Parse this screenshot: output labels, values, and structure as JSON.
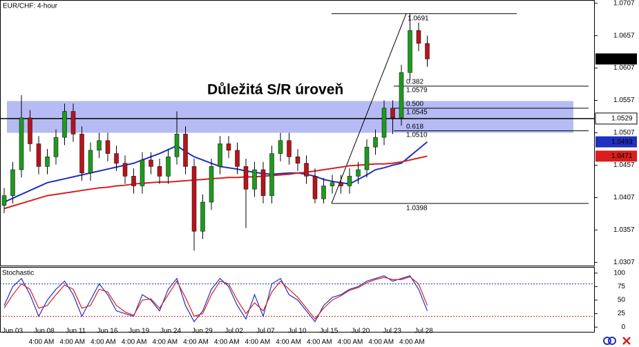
{
  "chart_data": [
    {
      "type": "candlestick",
      "title": "EUR/CHF: 4-hour",
      "annotation": "Důležitá S/R úroveň",
      "ylim": [
        1.0302,
        1.0712
      ],
      "yticks": [
        1.0707,
        1.0657,
        1.0607,
        1.0557,
        1.0507,
        1.0457,
        1.0407,
        1.0357,
        1.0307
      ],
      "up_color": "#1f9a1f",
      "down_color": "#b8141b",
      "open": [
        1.0395,
        1.041,
        1.045,
        1.053,
        1.049,
        1.0455,
        1.047,
        1.05,
        1.054,
        1.0505,
        1.0445,
        1.048,
        1.0495,
        1.0475,
        1.046,
        1.044,
        1.0425,
        1.0465,
        1.0455,
        1.044,
        1.047,
        1.0505,
        1.0455,
        1.0355,
        1.04,
        1.0455,
        1.049,
        1.048,
        1.0455,
        1.042,
        1.045,
        1.041,
        1.0475,
        1.0495,
        1.047,
        1.046,
        1.044,
        1.0405,
        1.0425,
        1.043,
        1.0425,
        1.044,
        1.045,
        1.0485,
        1.05,
        1.0545,
        1.053,
        1.06,
        1.0665,
        1.0645
      ],
      "high": [
        1.0422,
        1.0462,
        1.0565,
        1.0542,
        1.0502,
        1.0482,
        1.0512,
        1.0552,
        1.0552,
        1.0517,
        1.0492,
        1.0507,
        1.0507,
        1.0487,
        1.0472,
        1.0452,
        1.0477,
        1.0477,
        1.0467,
        1.0482,
        1.054,
        1.0517,
        1.0467,
        1.0412,
        1.0467,
        1.0502,
        1.0502,
        1.0492,
        1.0467,
        1.0462,
        1.0462,
        1.0487,
        1.0507,
        1.0507,
        1.0482,
        1.0472,
        1.0452,
        1.0437,
        1.0442,
        1.0442,
        1.0452,
        1.0462,
        1.0497,
        1.0512,
        1.0557,
        1.0557,
        1.0612,
        1.0691,
        1.0677,
        1.0657
      ],
      "low": [
        1.0383,
        1.0398,
        1.0438,
        1.0478,
        1.0443,
        1.0443,
        1.0458,
        1.0488,
        1.0493,
        1.0433,
        1.0433,
        1.0468,
        1.0463,
        1.0448,
        1.0428,
        1.0413,
        1.0413,
        1.0443,
        1.0428,
        1.0428,
        1.0458,
        1.0443,
        1.0325,
        1.0343,
        1.0388,
        1.0443,
        1.0468,
        1.0443,
        1.036,
        1.0408,
        1.0398,
        1.0398,
        1.0463,
        1.0458,
        1.0448,
        1.0428,
        1.0398,
        1.0398,
        1.0413,
        1.0413,
        1.0413,
        1.0428,
        1.0438,
        1.0473,
        1.0488,
        1.0505,
        1.0518,
        1.0588,
        1.0633,
        1.0609
      ],
      "close": [
        1.041,
        1.045,
        1.053,
        1.049,
        1.0455,
        1.047,
        1.05,
        1.054,
        1.0505,
        1.0445,
        1.048,
        1.0495,
        1.0475,
        1.046,
        1.044,
        1.0425,
        1.0465,
        1.0455,
        1.044,
        1.047,
        1.0505,
        1.0455,
        1.0355,
        1.04,
        1.0455,
        1.049,
        1.048,
        1.0455,
        1.042,
        1.045,
        1.041,
        1.0475,
        1.0495,
        1.047,
        1.046,
        1.044,
        1.0405,
        1.0425,
        1.043,
        1.0425,
        1.044,
        1.045,
        1.0485,
        1.05,
        1.0545,
        1.053,
        1.06,
        1.0665,
        1.0645,
        1.0621
      ],
      "series": [
        {
          "color": "#1f2fbf",
          "values": [
            1.04,
            1.0406,
            1.0412,
            1.0418,
            1.0424,
            1.043,
            1.0433,
            1.0436,
            1.0439,
            1.0442,
            1.0445,
            1.0448,
            1.0451,
            1.0454,
            1.0457,
            1.046,
            1.0465,
            1.047,
            1.0475,
            1.0481,
            1.0487,
            1.0478,
            1.047,
            1.0465,
            1.046,
            1.0455,
            1.0453,
            1.0451,
            1.0448,
            1.0446,
            1.0444,
            1.0443,
            1.0444,
            1.0445,
            1.0445,
            1.0443,
            1.044,
            1.0435,
            1.0432,
            1.043,
            1.0428,
            1.0435,
            1.0442,
            1.045,
            1.0453,
            1.0457,
            1.046,
            1.0471,
            1.0482,
            1.0493
          ]
        },
        {
          "color": "#d81e1e",
          "values": [
            1.039,
            1.0394,
            1.0398,
            1.0402,
            1.0406,
            1.041,
            1.0412,
            1.0414,
            1.0416,
            1.0418,
            1.042,
            1.0422,
            1.0423,
            1.0425,
            1.0426,
            1.0428,
            1.0429,
            1.043,
            1.0431,
            1.0431,
            1.0432,
            1.0433,
            1.0434,
            1.0435,
            1.0436,
            1.0437,
            1.0438,
            1.0438,
            1.0439,
            1.0439,
            1.044,
            1.0441,
            1.0442,
            1.0443,
            1.0445,
            1.0446,
            1.0448,
            1.045,
            1.0452,
            1.0454,
            1.0456,
            1.0457,
            1.0458,
            1.0459,
            1.0459,
            1.046,
            1.0462,
            1.0465,
            1.0468,
            1.0471
          ]
        }
      ],
      "zone": [
        1.0507,
        1.0556
      ],
      "zone_color": "#9ea4f0",
      "sr_line": {
        "value": 1.0529,
        "label": "1.0529"
      },
      "swing_high": 1.0691,
      "swing_low": 1.0398,
      "fib_levels": [
        {
          "ratio": 0.382,
          "price": 1.0579
        },
        {
          "ratio": {
            "value": 0.5,
            "label": "0.500"
          },
          "price": 1.0545
        },
        {
          "ratio": 0.618,
          "price": {
            "value": 1.051,
            "label": "1.0510"
          }
        }
      ],
      "markers": [
        {
          "value": 1.0621,
          "color": "#000000"
        },
        {
          "value": 1.0493,
          "color": "#1f2fbf"
        },
        {
          "value": 1.0471,
          "color": "#d81e1e"
        }
      ],
      "date_labels": [
        "Jun 03",
        "Jun 08",
        "Jun 11",
        "Jun 16",
        "Jun 19",
        "Jun 24",
        "Jun 29",
        "Jul 02",
        "Jul 07",
        "Jul 10",
        "Jul 15",
        "Jul 20",
        "Jul 23",
        "Jul 28"
      ],
      "time_labels": [
        "4:00 AM",
        "4:00 AM",
        "4:00 AM",
        "4:00 AM",
        "4:00 AM",
        "4:00 AM",
        "4:00 AM",
        "4:00 AM",
        "4:00 AM",
        "4:00 AM",
        "4:00 AM",
        "4:00 AM",
        "4:00 AM"
      ]
    },
    {
      "type": "line",
      "title": "Stochastic",
      "ylim": [
        -10,
        110
      ],
      "yticks": [
        100,
        75,
        50,
        25,
        0
      ],
      "levels": [
        {
          "value": 80,
          "color": "#1f2fbf"
        },
        {
          "value": 20,
          "color": "#d81e1e"
        }
      ],
      "series": [
        {
          "color": "#1f2fbf",
          "values": [
            40,
            75,
            90,
            60,
            20,
            50,
            70,
            85,
            60,
            20,
            50,
            80,
            60,
            30,
            25,
            20,
            60,
            50,
            30,
            70,
            90,
            40,
            10,
            30,
            70,
            90,
            75,
            40,
            15,
            60,
            20,
            80,
            90,
            60,
            50,
            30,
            10,
            40,
            55,
            60,
            70,
            75,
            85,
            90,
            95,
            85,
            90,
            95,
            70,
            30
          ]
        },
        {
          "color": "#d81e1e",
          "values": [
            35,
            60,
            80,
            70,
            35,
            40,
            60,
            78,
            70,
            35,
            40,
            70,
            65,
            40,
            28,
            22,
            50,
            52,
            35,
            60,
            85,
            55,
            20,
            25,
            60,
            85,
            80,
            50,
            25,
            45,
            30,
            65,
            85,
            70,
            55,
            35,
            15,
            35,
            50,
            58,
            68,
            73,
            82,
            88,
            92,
            88,
            88,
            93,
            80,
            40
          ]
        }
      ]
    }
  ]
}
